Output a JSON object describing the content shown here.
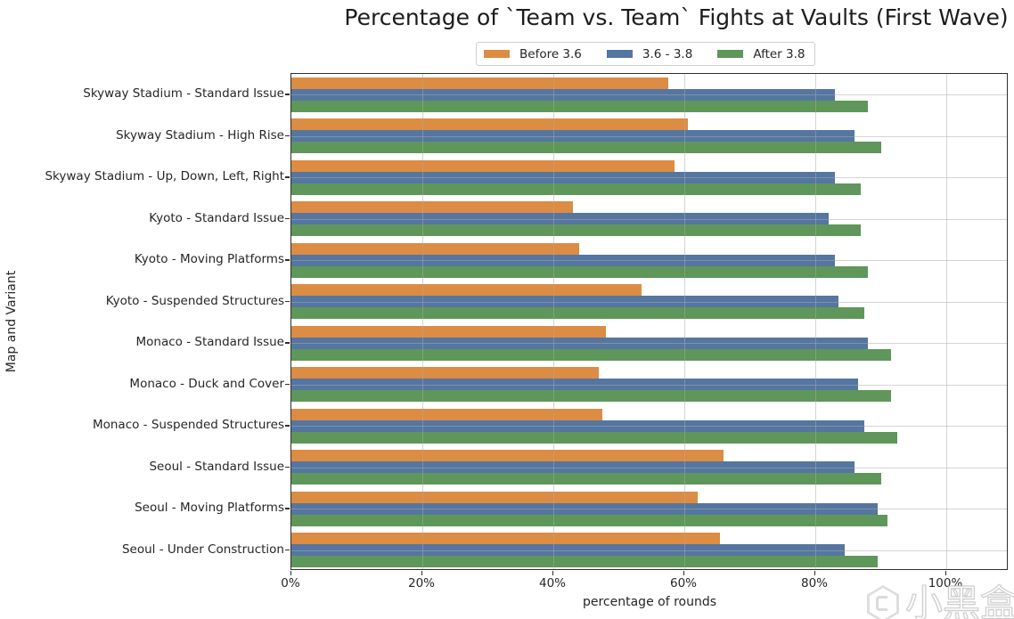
{
  "title": "Percentage of `Team vs. Team` Fights at Vaults (First Wave)",
  "watermark": {
    "text": "小黑盒"
  },
  "chart_data": {
    "type": "bar",
    "orientation": "horizontal",
    "title": "Percentage of `Team vs. Team` Fights at Vaults (First Wave)",
    "xlabel": "percentage of rounds",
    "ylabel": "Map and Variant",
    "x_tick_labels": [
      "0%",
      "20%",
      "40%",
      "60%",
      "80%",
      "100%"
    ],
    "x_tick_values": [
      0,
      20,
      40,
      60,
      80,
      100
    ],
    "xlim": [
      0,
      109.5
    ],
    "grid": true,
    "legend_position": "upper center outside",
    "categories": [
      "Skyway Stadium - Standard Issue",
      "Skyway Stadium - High Rise",
      "Skyway Stadium - Up, Down, Left, Right",
      "Kyoto - Standard Issue",
      "Kyoto - Moving Platforms",
      "Kyoto - Suspended Structures",
      "Monaco - Standard Issue",
      "Monaco - Duck and Cover",
      "Monaco - Suspended Structures",
      "Seoul - Standard Issue",
      "Seoul - Moving Platforms",
      "Seoul - Under Construction"
    ],
    "series": [
      {
        "name": "Before 3.6",
        "color": "#DC8C43",
        "values": [
          57.5,
          60.5,
          58.5,
          43,
          44,
          53.5,
          48,
          47,
          47.5,
          66,
          62,
          65.5
        ]
      },
      {
        "name": "3.6 - 3.8",
        "color": "#5576A1",
        "values": [
          83,
          86,
          83,
          82,
          83,
          83.5,
          88,
          86.5,
          87.5,
          86,
          89.5,
          84.5
        ]
      },
      {
        "name": "After 3.8",
        "color": "#5E9759",
        "values": [
          88,
          90,
          87,
          87,
          88,
          87.5,
          91.5,
          91.5,
          92.5,
          90,
          91,
          89.5
        ]
      }
    ]
  }
}
